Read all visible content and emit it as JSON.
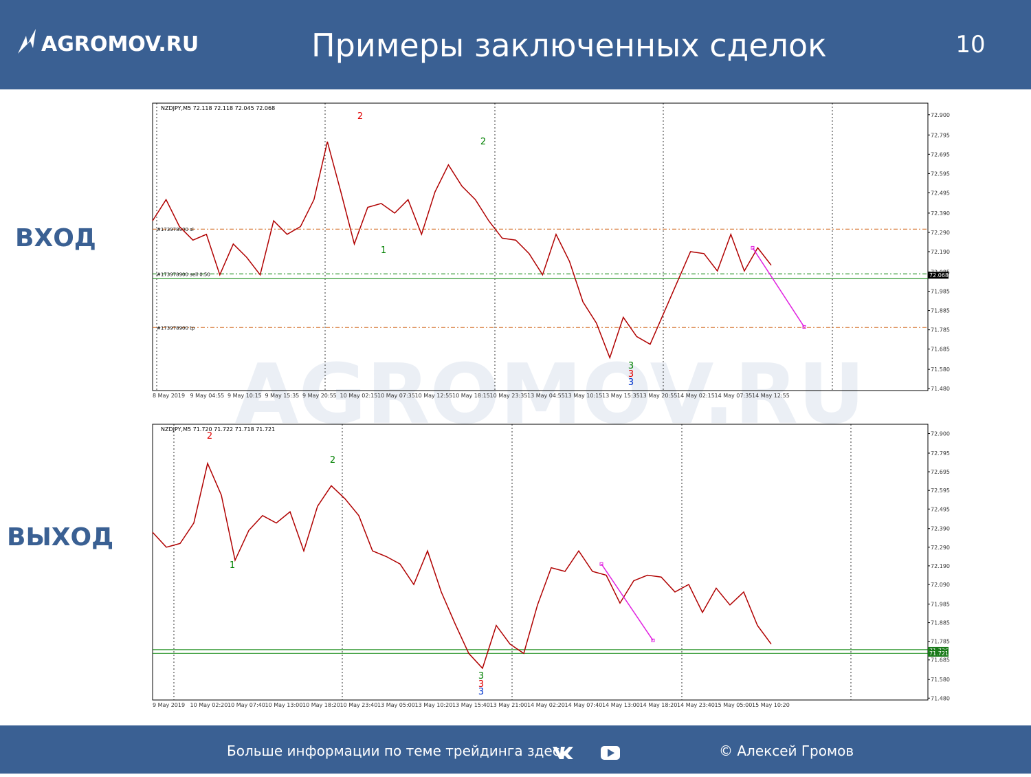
{
  "header": {
    "logo": "AGROMOV.RU",
    "title": "Примеры заключенных сделок",
    "page": "10",
    "watermark": "AGROMOV.RU"
  },
  "side_labels": {
    "entry": "ВХОД",
    "exit": "ВЫХОД"
  },
  "chart_data": [
    {
      "type": "line",
      "title": "NZDJPY,M5  72.118 72.118 72.045 72.068",
      "x_labels": [
        "8 May 2019",
        "9 May 04:55",
        "9 May 10:15",
        "9 May 15:35",
        "9 May 20:55",
        "10 May 02:15",
        "10 May 07:35",
        "10 May 12:55",
        "10 May 18:15",
        "10 May 23:35",
        "13 May 04:55",
        "13 May 10:15",
        "13 May 15:35",
        "13 May 20:55",
        "14 May 02:15",
        "14 May 07:35",
        "14 May 12:55"
      ],
      "ylim": [
        71.47,
        72.96
      ],
      "yticks": [
        {
          "value": 72.9,
          "label": "72.900"
        },
        72.795,
        72.695,
        72.595,
        72.495,
        {
          "value": 72.39,
          "label": "72.390"
        },
        {
          "value": 72.29,
          "label": "72.290"
        },
        {
          "value": 72.19,
          "label": "72.190"
        },
        72.085,
        71.985,
        71.885,
        71.785,
        71.685,
        {
          "value": 71.58,
          "label": "71.580"
        },
        {
          "value": 71.48,
          "label": "71.480"
        }
      ],
      "color": "#b00000",
      "values": [
        72.35,
        72.46,
        72.32,
        72.25,
        72.28,
        72.07,
        72.23,
        72.16,
        72.07,
        72.35,
        72.28,
        72.32,
        72.46,
        72.76,
        72.5,
        72.23,
        72.42,
        72.44,
        72.39,
        72.46,
        72.28,
        72.5,
        72.64,
        72.53,
        72.46,
        72.35,
        72.26,
        72.25,
        72.18,
        72.07,
        72.28,
        72.14,
        71.93,
        71.82,
        71.64,
        71.85,
        71.75,
        71.71,
        71.87,
        72.03,
        72.19,
        72.18,
        72.09,
        72.28,
        72.09,
        72.21,
        72.12
      ],
      "levels": [
        {
          "label": "#173978900 sl",
          "value": 72.307,
          "color": "#d2691e"
        },
        {
          "label": "#173978900 sell 0.50",
          "value": 72.075,
          "color": "#008000"
        },
        {
          "value": 72.05,
          "color": "#008000"
        },
        {
          "label": "#173978900 tp",
          "value": 71.797,
          "color": "#d2691e"
        }
      ],
      "price_tags": [
        {
          "value": 72.068,
          "label": "72.068"
        }
      ],
      "wave_labels": [
        {
          "text": "2",
          "color": "#e00000"
        },
        {
          "text": "1",
          "color": "#008000"
        },
        {
          "text": "2",
          "color": "#008000"
        },
        {
          "text": "3",
          "color": "#008000"
        },
        {
          "text": "3",
          "color": "#e00000"
        },
        {
          "text": "3",
          "color": "#0033cc"
        }
      ],
      "trade_line": {
        "color": "#e020e0",
        "values": [
          72.21,
          71.8
        ]
      }
    },
    {
      "type": "line",
      "title": "NZDJPY,M5  71.720 71.722 71.718 71.721",
      "x_labels": [
        "9 May 2019",
        "10 May 02:20",
        "10 May 07:40",
        "10 May 13:00",
        "10 May 18:20",
        "10 May 23:40",
        "13 May 05:00",
        "13 May 10:20",
        "13 May 15:40",
        "13 May 21:00",
        "14 May 02:20",
        "14 May 07:40",
        "14 May 13:00",
        "14 May 18:20",
        "14 May 23:40",
        "15 May 05:00",
        "15 May 10:20"
      ],
      "ylim": [
        71.47,
        72.95
      ],
      "yticks": [
        {
          "value": 72.9,
          "label": "72.900"
        },
        72.795,
        72.695,
        72.595,
        72.495,
        {
          "value": 72.39,
          "label": "72.390"
        },
        {
          "value": 72.29,
          "label": "72.290"
        },
        {
          "value": 72.19,
          "label": "72.190"
        },
        {
          "value": 72.09,
          "label": "72.090"
        },
        71.985,
        71.885,
        71.785,
        71.685,
        {
          "value": 71.58,
          "label": "71.580"
        },
        {
          "value": 71.48,
          "label": "71.480"
        }
      ],
      "color": "#b00000",
      "values": [
        72.37,
        72.29,
        72.31,
        72.42,
        72.74,
        72.57,
        72.22,
        72.38,
        72.46,
        72.42,
        72.48,
        72.27,
        72.51,
        72.62,
        72.55,
        72.46,
        72.27,
        72.24,
        72.2,
        72.09,
        72.27,
        72.05,
        71.88,
        71.72,
        71.64,
        71.87,
        71.77,
        71.72,
        71.98,
        72.18,
        72.16,
        72.27,
        72.16,
        72.14,
        71.99,
        72.11,
        72.14,
        72.13,
        72.05,
        72.09,
        71.94,
        72.07,
        71.98,
        72.05,
        71.87,
        71.77
      ],
      "levels": [
        {
          "value": 71.74,
          "color": "#008000"
        },
        {
          "value": 71.72,
          "color": "#008000"
        }
      ],
      "price_tags": [
        {
          "value": 71.736,
          "label": "71.736"
        },
        {
          "value": 71.721,
          "label": "71.721"
        }
      ],
      "wave_labels": [
        {
          "text": "2",
          "color": "#e00000"
        },
        {
          "text": "2",
          "color": "#008000"
        },
        {
          "text": "1",
          "color": "#008000"
        },
        {
          "text": "3",
          "color": "#008000"
        },
        {
          "text": "3",
          "color": "#e00000"
        },
        {
          "text": "3",
          "color": "#0033cc"
        }
      ],
      "trade_line": {
        "color": "#e020e0",
        "values": [
          72.2,
          71.79
        ]
      }
    }
  ],
  "footer": {
    "text": "Больше информации по теме трейдинга здесь",
    "author": "© Алексей Громов"
  }
}
